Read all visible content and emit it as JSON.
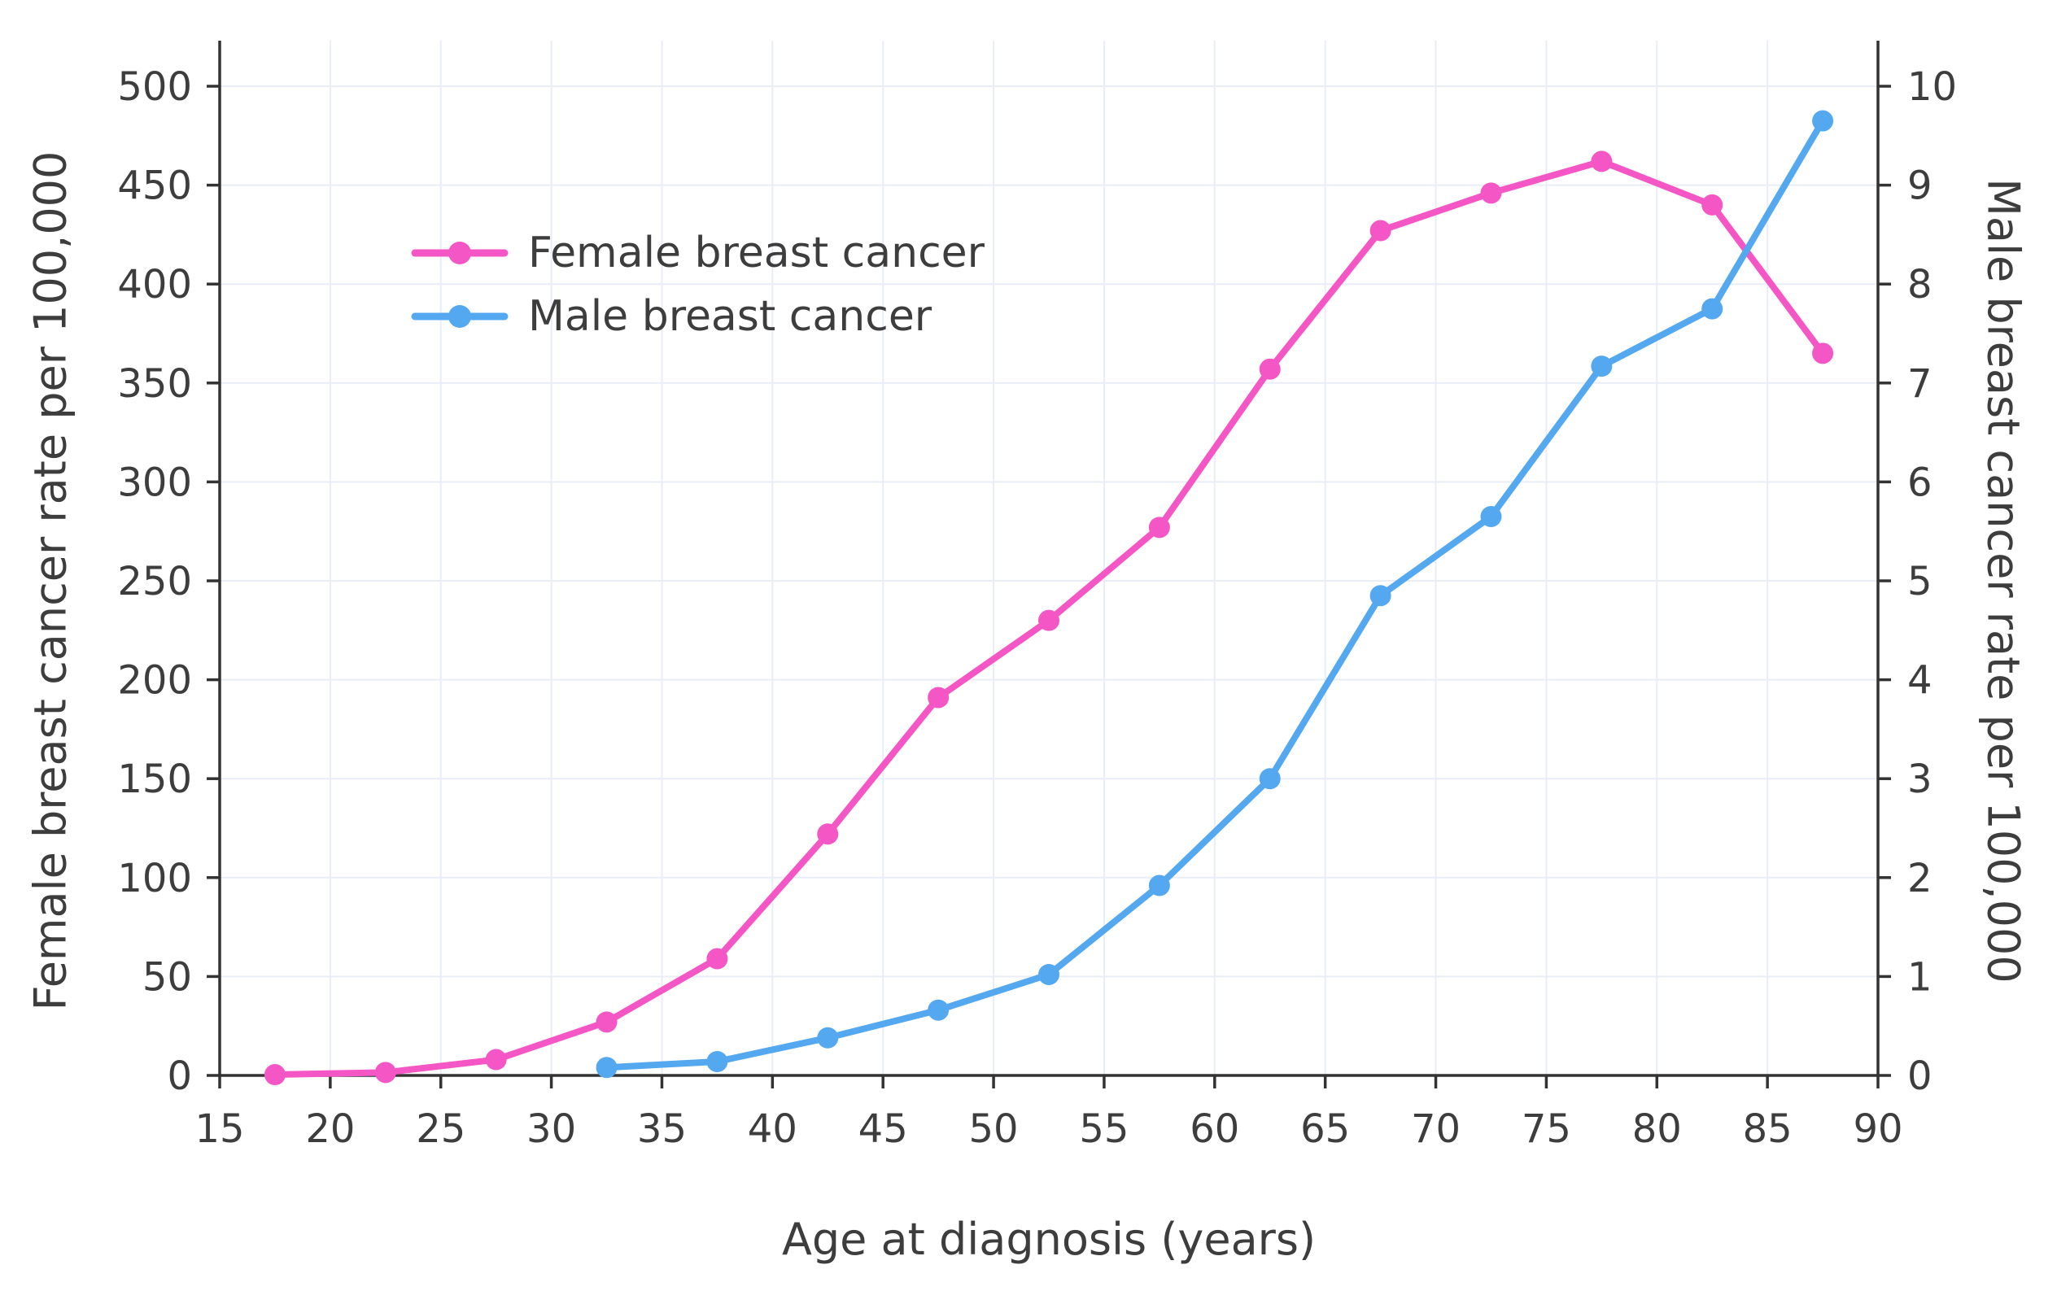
{
  "chart_data": {
    "type": "line",
    "title": "",
    "xlabel": "Age at diagnosis (years)",
    "ylabel_left": "Female breast cancer rate per 100,000",
    "ylabel_right": "Male breast cancer rate per 100,000",
    "xlim": [
      15,
      90
    ],
    "ylim_left": [
      0,
      500
    ],
    "ylim_right": [
      0,
      10
    ],
    "x_ticks": [
      15,
      20,
      25,
      30,
      35,
      40,
      45,
      50,
      55,
      60,
      65,
      70,
      75,
      80,
      85,
      90
    ],
    "y_left_ticks": [
      0,
      50,
      100,
      150,
      200,
      250,
      300,
      350,
      400,
      450,
      500
    ],
    "y_right_ticks": [
      0,
      1,
      2,
      3,
      4,
      5,
      6,
      7,
      8,
      9,
      10
    ],
    "grid": true,
    "legend_position": "upper-left-inside",
    "colors": {
      "grid": "#e9edf8",
      "axis": "#333333",
      "text": "#3d3d3d"
    },
    "series": [
      {
        "name": "Female breast cancer",
        "axis": "left",
        "color": "#f556c5",
        "x": [
          17.5,
          22.5,
          27.5,
          32.5,
          37.5,
          42.5,
          47.5,
          52.5,
          57.5,
          62.5,
          67.5,
          72.5,
          77.5,
          82.5,
          87.5
        ],
        "y": [
          0.4,
          1.5,
          8,
          27,
          59,
          122,
          191,
          230,
          277,
          357,
          427,
          446,
          462,
          440,
          365
        ]
      },
      {
        "name": "Male breast cancer",
        "axis": "right",
        "color": "#54a8f0",
        "x": [
          32.5,
          37.5,
          42.5,
          47.5,
          52.5,
          57.5,
          62.5,
          67.5,
          72.5,
          77.5,
          82.5,
          87.5
        ],
        "y": [
          0.08,
          0.14,
          0.38,
          0.66,
          1.02,
          1.92,
          3.0,
          4.85,
          5.65,
          7.17,
          7.75,
          9.65
        ]
      }
    ]
  }
}
